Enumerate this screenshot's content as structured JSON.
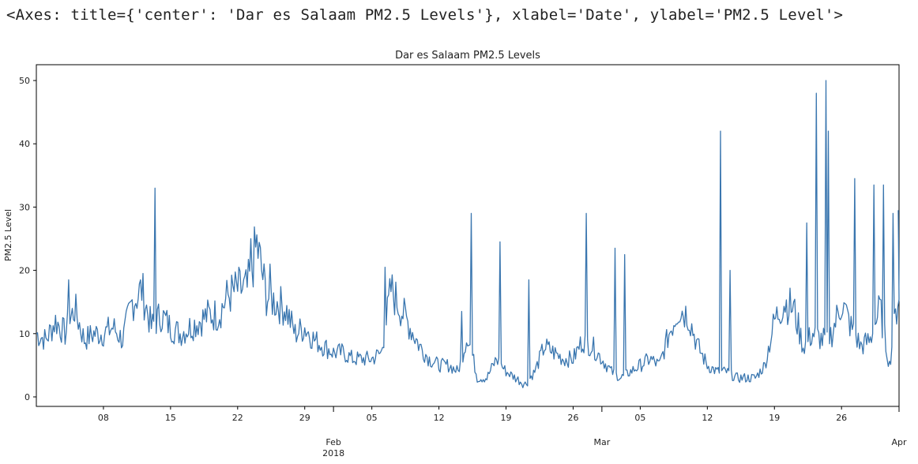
{
  "output_repr": "<Axes: title={'center': 'Dar es Salaam PM2.5 Levels'}, xlabel='Date', ylabel='PM2.5 Level'>",
  "chart_data": {
    "type": "line",
    "title": "Dar es Salaam PM2.5 Levels",
    "xlabel": "Date",
    "ylabel": "PM2.5 Level",
    "xlim": [
      "2018-01-01",
      "2018-04-01"
    ],
    "ylim": [
      -1.5,
      52.5
    ],
    "grid": false,
    "line_color": "#3a76af",
    "y_ticks": [
      0,
      10,
      20,
      30,
      40,
      50
    ],
    "x_minor_ticks": [
      {
        "date": "2018-01-08",
        "label": "08"
      },
      {
        "date": "2018-01-15",
        "label": "15"
      },
      {
        "date": "2018-01-22",
        "label": "22"
      },
      {
        "date": "2018-01-29",
        "label": "29"
      },
      {
        "date": "2018-02-05",
        "label": "05"
      },
      {
        "date": "2018-02-12",
        "label": "12"
      },
      {
        "date": "2018-02-19",
        "label": "19"
      },
      {
        "date": "2018-02-26",
        "label": "26"
      },
      {
        "date": "2018-03-05",
        "label": "05"
      },
      {
        "date": "2018-03-12",
        "label": "12"
      },
      {
        "date": "2018-03-19",
        "label": "19"
      },
      {
        "date": "2018-03-26",
        "label": "26"
      }
    ],
    "x_major_ticks": [
      {
        "date": "2018-02-01",
        "label": "Feb",
        "sublabel": "2018"
      },
      {
        "date": "2018-03-01",
        "label": "Mar",
        "sublabel": ""
      },
      {
        "date": "2018-04-01",
        "label": "Apr",
        "sublabel": ""
      }
    ],
    "series": [
      {
        "x": [
          "2018-01-01",
          "2018-01-02",
          "2018-01-03",
          "2018-01-04",
          "2018-01-05",
          "2018-01-06",
          "2018-01-07",
          "2018-01-08",
          "2018-01-09",
          "2018-01-10",
          "2018-01-11",
          "2018-01-12",
          "2018-01-13",
          "2018-01-14",
          "2018-01-15",
          "2018-01-16",
          "2018-01-17",
          "2018-01-18",
          "2018-01-19",
          "2018-01-20",
          "2018-01-21",
          "2018-01-22",
          "2018-01-23",
          "2018-01-24",
          "2018-01-25",
          "2018-01-26",
          "2018-01-27",
          "2018-01-28",
          "2018-01-29",
          "2018-01-30",
          "2018-01-31",
          "2018-02-01",
          "2018-02-02",
          "2018-02-03",
          "2018-02-04",
          "2018-02-05",
          "2018-02-06",
          "2018-02-07",
          "2018-02-08",
          "2018-02-09",
          "2018-02-10",
          "2018-02-11",
          "2018-02-12",
          "2018-02-13",
          "2018-02-14",
          "2018-02-15",
          "2018-02-16",
          "2018-02-17",
          "2018-02-18",
          "2018-02-19",
          "2018-02-20",
          "2018-02-21",
          "2018-02-22",
          "2018-02-23",
          "2018-02-24",
          "2018-02-25",
          "2018-02-26",
          "2018-02-27",
          "2018-02-28",
          "2018-03-01",
          "2018-03-02",
          "2018-03-03",
          "2018-03-04",
          "2018-03-05",
          "2018-03-06",
          "2018-03-07",
          "2018-03-08",
          "2018-03-09",
          "2018-03-10",
          "2018-03-11",
          "2018-03-12",
          "2018-03-13",
          "2018-03-14",
          "2018-03-15",
          "2018-03-16",
          "2018-03-17",
          "2018-03-18",
          "2018-03-19",
          "2018-03-20",
          "2018-03-21",
          "2018-03-22",
          "2018-03-23",
          "2018-03-24",
          "2018-03-25",
          "2018-03-26",
          "2018-03-27",
          "2018-03-28",
          "2018-03-29",
          "2018-03-30",
          "2018-03-31",
          "2018-04-01"
        ],
        "y": [
          10,
          9,
          12,
          10,
          14,
          9,
          10,
          10,
          11,
          9,
          15,
          17,
          11,
          13,
          11,
          10,
          11,
          12,
          13,
          13,
          16,
          17,
          17,
          24,
          16,
          15,
          14,
          10,
          11,
          9,
          8,
          7,
          7,
          6,
          6,
          6,
          7,
          17,
          14,
          11,
          8,
          6,
          5,
          5,
          4,
          10,
          3,
          3,
          6,
          4,
          3,
          2,
          4,
          8,
          7,
          6,
          6,
          9,
          8,
          6,
          4,
          3,
          4,
          5,
          6,
          5,
          10,
          14,
          13,
          8,
          5,
          4,
          4,
          3,
          3,
          3,
          5,
          12,
          15,
          14,
          8,
          10,
          9,
          10,
          15,
          11,
          8,
          9,
          14,
          5,
          17
        ]
      }
    ],
    "spikes": [
      {
        "date": "2018-01-04",
        "value": 18.5
      },
      {
        "date": "2018-01-13",
        "value": 33
      },
      {
        "date": "2018-01-23",
        "value": 25
      },
      {
        "date": "2018-01-25",
        "value": 21
      },
      {
        "date": "2018-02-06",
        "value": 20.5
      },
      {
        "date": "2018-02-14",
        "value": 13.5
      },
      {
        "date": "2018-02-15",
        "value": 29
      },
      {
        "date": "2018-02-18",
        "value": 24.5
      },
      {
        "date": "2018-02-21",
        "value": 18.5
      },
      {
        "date": "2018-02-27",
        "value": 29
      },
      {
        "date": "2018-03-02",
        "value": 23.5
      },
      {
        "date": "2018-03-03",
        "value": 22.5
      },
      {
        "date": "2018-03-13",
        "value": 42
      },
      {
        "date": "2018-03-14",
        "value": 20
      },
      {
        "date": "2018-03-22",
        "value": 27.5
      },
      {
        "date": "2018-03-23",
        "value": 48
      },
      {
        "date": "2018-03-24",
        "value": 50
      },
      {
        "date": "2018-03-24",
        "value": 42
      },
      {
        "date": "2018-03-27",
        "value": 34.5
      },
      {
        "date": "2018-03-29",
        "value": 33.5
      },
      {
        "date": "2018-03-30",
        "value": 33.5
      },
      {
        "date": "2018-03-31",
        "value": 29
      },
      {
        "date": "2018-04-01",
        "value": 29.5
      }
    ]
  }
}
